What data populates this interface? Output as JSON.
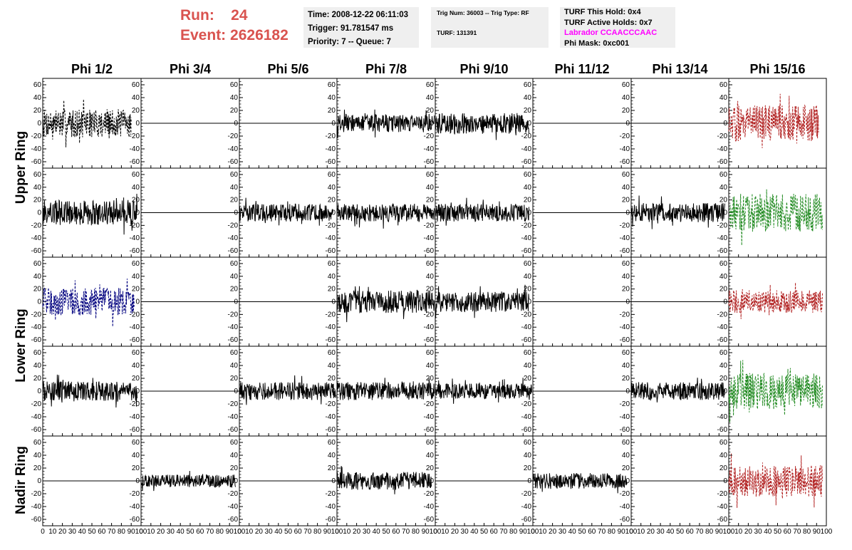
{
  "header": {
    "run_label": "Run:",
    "run_value": "24",
    "event_label": "Event:",
    "event_value": "2626182"
  },
  "info_time": {
    "time": "Time: 2008-12-22 06:11:03",
    "trigger": "Trigger: 91.781547 ms",
    "priority": "Priority: 7 -- Queue: 7"
  },
  "info_trig": {
    "trig": "Trig Num: 36003 -- Trig Type: RF",
    "turf": "TURF: 131391"
  },
  "info_turf": {
    "hold": "TURF This Hold: 0x4",
    "active": "TURF Active Holds: 0x7",
    "labrador": "Labrador CCAACCCAAC",
    "phimask": "Phi Mask: 0xc001"
  },
  "colors": {
    "run_text": "#d9534f",
    "labrador_text": "#ff00ff",
    "black_trace": "#000000",
    "blue_trace": "#00007f",
    "red_trace": "#b22222",
    "green_trace": "#228b22",
    "info_bg": "#efefef"
  },
  "chart_data": {
    "type": "line",
    "columns": [
      "Phi 1/2",
      "Phi 3/4",
      "Phi 5/6",
      "Phi 7/8",
      "Phi 9/10",
      "Phi 11/12",
      "Phi 13/14",
      "Phi 15/16"
    ],
    "ring_labels": [
      "Upper Ring",
      "Lower Ring",
      "Nadir Ring"
    ],
    "y_ticks": [
      60,
      40,
      20,
      0,
      -20,
      -40,
      -60
    ],
    "x_ticks": [
      0,
      10,
      20,
      30,
      40,
      50,
      60,
      70,
      80,
      90,
      100
    ],
    "xlim": [
      0,
      100
    ],
    "ylim": [
      -70,
      70
    ],
    "panels": [
      {
        "row": 0,
        "col": 0,
        "amp": 22,
        "color": "black",
        "style": "dashed",
        "active": true,
        "start": 0,
        "end": 90
      },
      {
        "row": 0,
        "col": 1,
        "amp": 0,
        "color": "black",
        "style": "solid",
        "active": false
      },
      {
        "row": 0,
        "col": 2,
        "amp": 0,
        "color": "black",
        "style": "solid",
        "active": false
      },
      {
        "row": 0,
        "col": 3,
        "amp": 14,
        "color": "black",
        "style": "solid",
        "active": true,
        "start": 0,
        "end": 99
      },
      {
        "row": 0,
        "col": 4,
        "amp": 16,
        "color": "black",
        "style": "solid",
        "active": true,
        "start": 0,
        "end": 96
      },
      {
        "row": 0,
        "col": 5,
        "amp": 0,
        "color": "black",
        "style": "solid",
        "active": false
      },
      {
        "row": 0,
        "col": 6,
        "amp": 0,
        "color": "black",
        "style": "solid",
        "active": false
      },
      {
        "row": 0,
        "col": 7,
        "amp": 28,
        "color": "red",
        "style": "dashed",
        "active": true,
        "start": 0,
        "end": 92
      },
      {
        "row": 1,
        "col": 0,
        "amp": 20,
        "color": "black",
        "style": "solid",
        "active": true,
        "start": 0,
        "end": 96
      },
      {
        "row": 1,
        "col": 1,
        "amp": 0,
        "color": "black",
        "style": "solid",
        "active": false
      },
      {
        "row": 1,
        "col": 2,
        "amp": 14,
        "color": "black",
        "style": "solid",
        "active": true,
        "start": 0,
        "end": 96
      },
      {
        "row": 1,
        "col": 3,
        "amp": 14,
        "color": "black",
        "style": "solid",
        "active": true,
        "start": 0,
        "end": 99
      },
      {
        "row": 1,
        "col": 4,
        "amp": 14,
        "color": "black",
        "style": "solid",
        "active": true,
        "start": 0,
        "end": 96
      },
      {
        "row": 1,
        "col": 5,
        "amp": 0,
        "color": "black",
        "style": "solid",
        "active": false
      },
      {
        "row": 1,
        "col": 6,
        "amp": 15,
        "color": "black",
        "style": "solid",
        "active": true,
        "start": 0,
        "end": 96
      },
      {
        "row": 1,
        "col": 7,
        "amp": 30,
        "color": "green",
        "style": "dashed",
        "active": true,
        "start": 0,
        "end": 96
      },
      {
        "row": 2,
        "col": 0,
        "amp": 22,
        "color": "blue",
        "style": "dashed",
        "active": true,
        "start": 0,
        "end": 93
      },
      {
        "row": 2,
        "col": 1,
        "amp": 0,
        "color": "black",
        "style": "solid",
        "active": false
      },
      {
        "row": 2,
        "col": 2,
        "amp": 0,
        "color": "black",
        "style": "solid",
        "active": false
      },
      {
        "row": 2,
        "col": 3,
        "amp": 18,
        "color": "black",
        "style": "solid",
        "active": true,
        "start": 0,
        "end": 99
      },
      {
        "row": 2,
        "col": 4,
        "amp": 16,
        "color": "black",
        "style": "solid",
        "active": true,
        "start": 0,
        "end": 96
      },
      {
        "row": 2,
        "col": 5,
        "amp": 0,
        "color": "black",
        "style": "solid",
        "active": false
      },
      {
        "row": 2,
        "col": 6,
        "amp": 0,
        "color": "black",
        "style": "solid",
        "active": false
      },
      {
        "row": 2,
        "col": 7,
        "amp": 18,
        "color": "red",
        "style": "dashed",
        "active": true,
        "start": 0,
        "end": 96
      },
      {
        "row": 3,
        "col": 0,
        "amp": 15,
        "color": "black",
        "style": "solid",
        "active": true,
        "start": 0,
        "end": 96
      },
      {
        "row": 3,
        "col": 1,
        "amp": 0,
        "color": "black",
        "style": "solid",
        "active": false
      },
      {
        "row": 3,
        "col": 2,
        "amp": 14,
        "color": "black",
        "style": "solid",
        "active": true,
        "start": 0,
        "end": 99
      },
      {
        "row": 3,
        "col": 3,
        "amp": 14,
        "color": "black",
        "style": "solid",
        "active": true,
        "start": 0,
        "end": 99
      },
      {
        "row": 3,
        "col": 4,
        "amp": 12,
        "color": "black",
        "style": "solid",
        "active": true,
        "start": 0,
        "end": 99
      },
      {
        "row": 3,
        "col": 5,
        "amp": 0,
        "color": "black",
        "style": "solid",
        "active": false
      },
      {
        "row": 3,
        "col": 6,
        "amp": 14,
        "color": "black",
        "style": "solid",
        "active": true,
        "start": 0,
        "end": 96
      },
      {
        "row": 3,
        "col": 7,
        "amp": 28,
        "color": "green",
        "style": "dashed",
        "active": true,
        "start": 0,
        "end": 96
      },
      {
        "row": 4,
        "col": 0,
        "amp": 0,
        "color": "black",
        "style": "solid",
        "active": false
      },
      {
        "row": 4,
        "col": 1,
        "amp": 10,
        "color": "black",
        "style": "solid",
        "active": true,
        "start": 0,
        "end": 96
      },
      {
        "row": 4,
        "col": 2,
        "amp": 0,
        "color": "black",
        "style": "solid",
        "active": false
      },
      {
        "row": 4,
        "col": 3,
        "amp": 14,
        "color": "black",
        "style": "solid",
        "active": true,
        "start": 0,
        "end": 96
      },
      {
        "row": 4,
        "col": 4,
        "amp": 0,
        "color": "black",
        "style": "solid",
        "active": false
      },
      {
        "row": 4,
        "col": 5,
        "amp": 12,
        "color": "black",
        "style": "solid",
        "active": true,
        "start": 0,
        "end": 96
      },
      {
        "row": 4,
        "col": 6,
        "amp": 0,
        "color": "black",
        "style": "solid",
        "active": false
      },
      {
        "row": 4,
        "col": 7,
        "amp": 25,
        "color": "red",
        "style": "dashed",
        "active": true,
        "start": 0,
        "end": 96
      }
    ]
  }
}
